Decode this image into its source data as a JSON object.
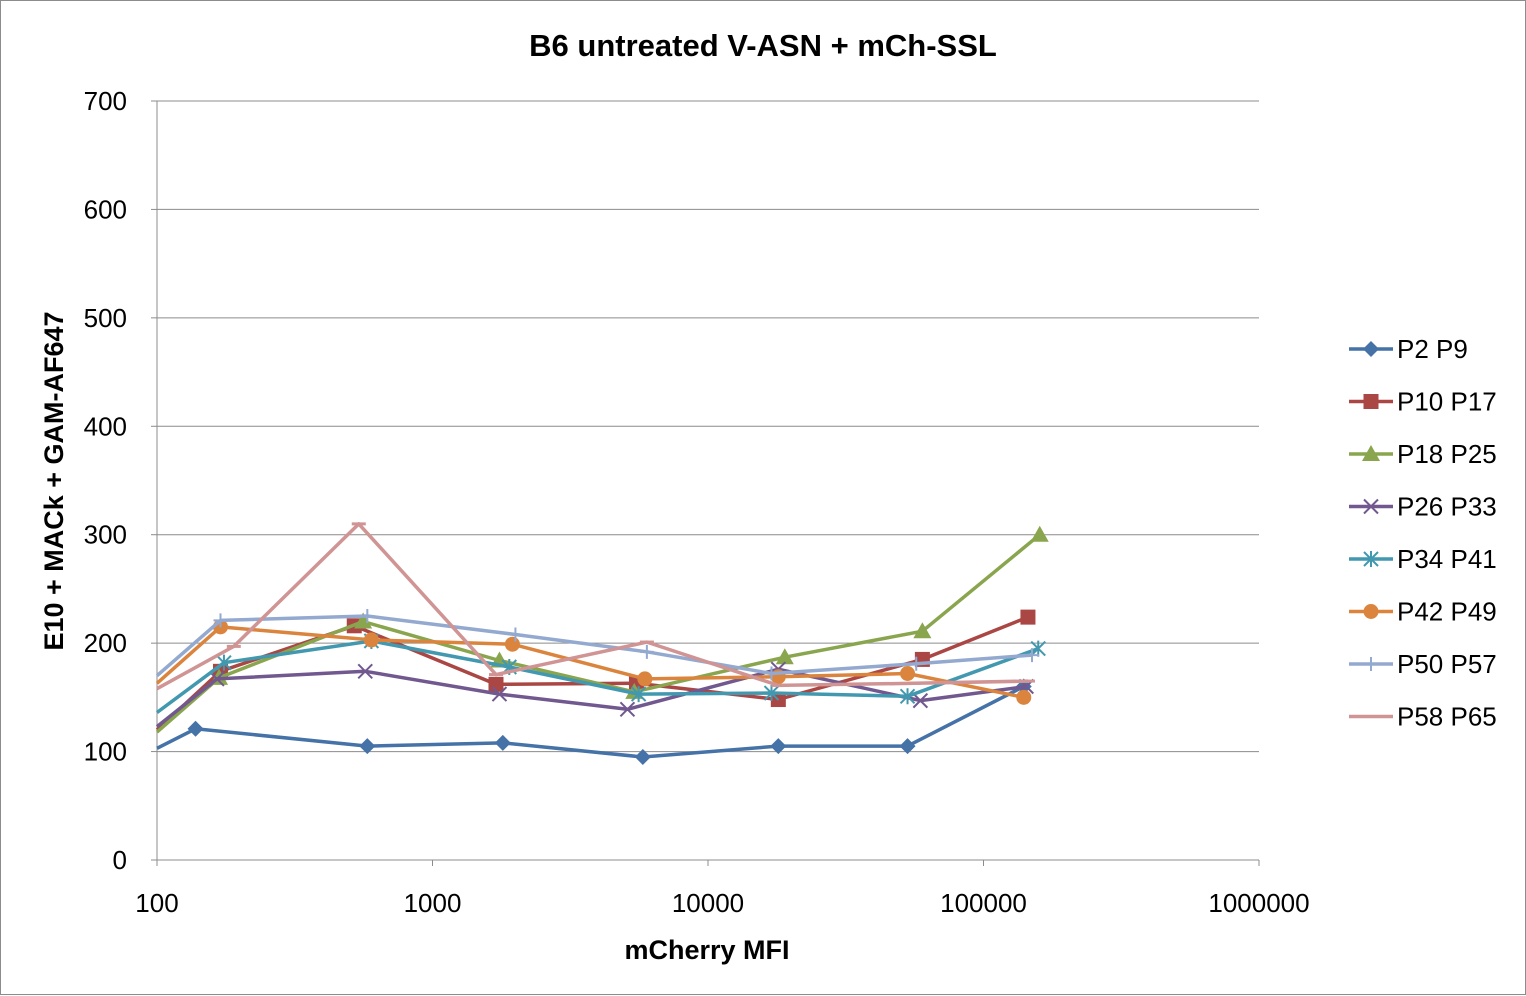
{
  "chart_data": {
    "type": "line",
    "title": "B6 untreated V-ASN + mCh-SSL",
    "xlabel": "mCherry MFI",
    "ylabel": "E10 + MACk + GAM-AF647",
    "x_scale": "log",
    "xlim": [
      100,
      1000000
    ],
    "ylim": [
      0,
      700
    ],
    "x_ticks": [
      100,
      1000,
      10000,
      100000,
      1000000
    ],
    "x_tick_labels": [
      "100",
      "1000",
      "10000",
      "100000",
      "1000000"
    ],
    "y_ticks": [
      0,
      100,
      200,
      300,
      400,
      500,
      600,
      700
    ],
    "y_tick_labels": [
      "0",
      "100",
      "200",
      "300",
      "400",
      "500",
      "600",
      "700"
    ],
    "grid": "horizontal",
    "legend_position": "right",
    "series": [
      {
        "name": "P2 P9",
        "color": "#4572A7",
        "marker": "diamond",
        "x": [
          100,
          138,
          580,
          1800,
          5800,
          18000,
          53000,
          140000
        ],
        "y": [
          103,
          121,
          105,
          108,
          95,
          105,
          105,
          160
        ]
      },
      {
        "name": "P10 P17",
        "color": "#AA4643",
        "marker": "square",
        "x": [
          100,
          170,
          520,
          1700,
          5500,
          18000,
          60000,
          145000
        ],
        "y": [
          120,
          174,
          216,
          162,
          163,
          148,
          185,
          224
        ]
      },
      {
        "name": "P18 P25",
        "color": "#89A54E",
        "marker": "triangle",
        "x": [
          100,
          168,
          560,
          1750,
          5400,
          19000,
          60000,
          160000
        ],
        "y": [
          118,
          168,
          220,
          184,
          155,
          187,
          211,
          300
        ]
      },
      {
        "name": "P26 P33",
        "color": "#71588F",
        "marker": "x",
        "x": [
          100,
          165,
          570,
          1750,
          5100,
          18000,
          59000,
          143000
        ],
        "y": [
          123,
          167,
          174,
          153,
          139,
          176,
          147,
          160
        ]
      },
      {
        "name": "P34 P41",
        "color": "#4198AF",
        "marker": "star",
        "x": [
          100,
          175,
          600,
          1900,
          5600,
          17000,
          53000,
          158000
        ],
        "y": [
          136,
          182,
          202,
          178,
          153,
          154,
          151,
          195
        ]
      },
      {
        "name": "P42 P49",
        "color": "#DB843D",
        "marker": "circle",
        "x": [
          100,
          170,
          600,
          1950,
          5900,
          18000,
          53000,
          140000
        ],
        "y": [
          163,
          215,
          203,
          199,
          167,
          169,
          172,
          150
        ]
      },
      {
        "name": "P50 P57",
        "color": "#93A9CF",
        "marker": "plus",
        "x": [
          100,
          170,
          580,
          2000,
          6000,
          17000,
          57000,
          150000
        ],
        "y": [
          170,
          221,
          225,
          208,
          192,
          172,
          181,
          189
        ]
      },
      {
        "name": "P58 P65",
        "color": "#D09494",
        "marker": "dash",
        "x": [
          100,
          190,
          540,
          1700,
          6000,
          18000,
          56000,
          145000
        ],
        "y": [
          158,
          197,
          310,
          171,
          201,
          161,
          163,
          165
        ]
      }
    ]
  }
}
